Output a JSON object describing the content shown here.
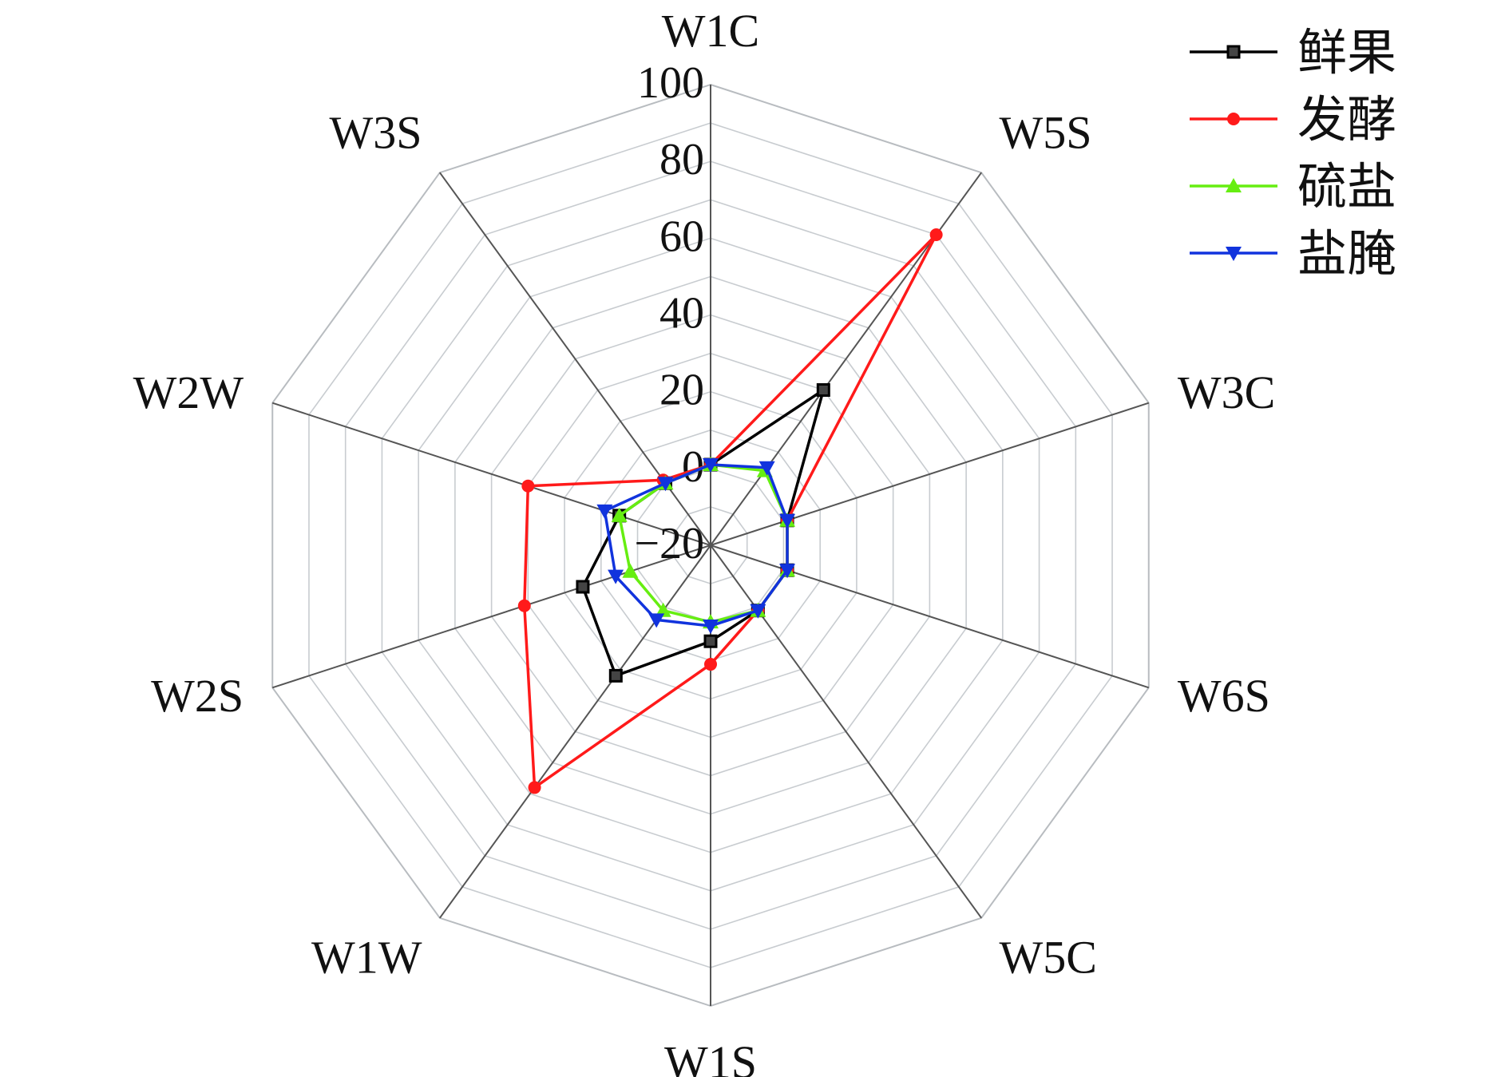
{
  "chart_data": {
    "type": "radar",
    "axes": [
      "W1C",
      "W5S",
      "W3C",
      "W6S",
      "W5C",
      "W1S",
      "W1W",
      "W2S",
      "W2W",
      "W3S"
    ],
    "rlim": [
      -20,
      100
    ],
    "ticks": [
      "-20",
      "0",
      "20",
      "40",
      "60",
      "80",
      "100"
    ],
    "tick_values": [
      -20,
      0,
      20,
      40,
      60,
      80,
      100
    ],
    "grid": true,
    "legend_position": "top-right",
    "series": [
      {
        "name": "鲜果",
        "color": "#000000",
        "marker": "square",
        "values": [
          1,
          30,
          1,
          1,
          1,
          5,
          22,
          15,
          5,
          0
        ]
      },
      {
        "name": "发酵",
        "color": "#ff1a1a",
        "marker": "circle",
        "values": [
          1,
          80,
          1,
          1,
          1,
          11,
          58,
          31,
          30,
          1
        ]
      },
      {
        "name": "硫盐",
        "color": "#66ee11",
        "marker": "triangle-up",
        "values": [
          1,
          4,
          1,
          1,
          1,
          0,
          1,
          2,
          5,
          0
        ]
      },
      {
        "name": "盐腌",
        "color": "#1133dd",
        "marker": "triangle-down",
        "values": [
          1,
          5,
          1,
          1,
          1,
          1,
          4,
          6,
          9,
          0
        ]
      }
    ]
  }
}
